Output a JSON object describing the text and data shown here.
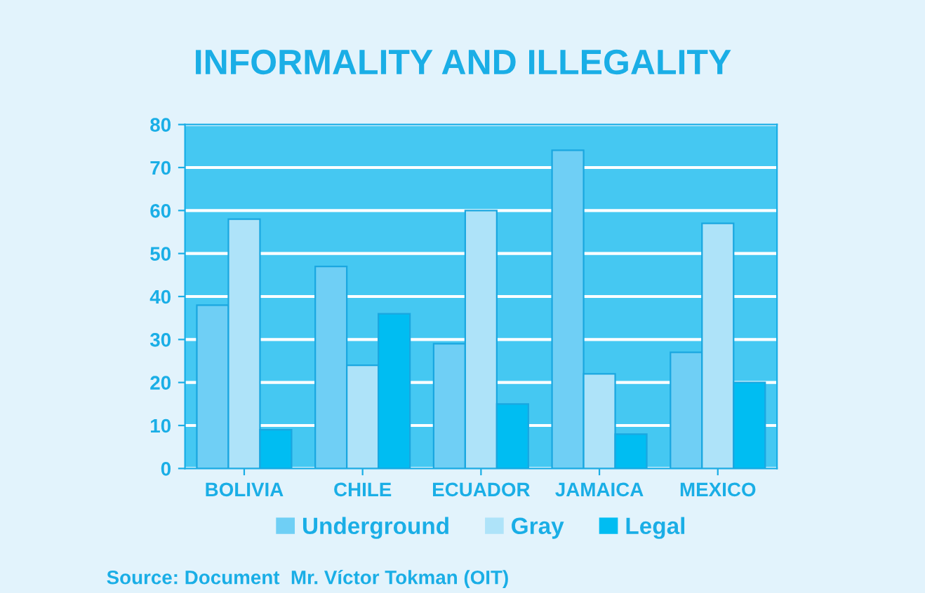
{
  "chart_data": {
    "type": "bar",
    "title": "INFORMALITY AND ILLEGALITY",
    "categories": [
      "BOLIVIA",
      "CHILE",
      "ECUADOR",
      "JAMAICA",
      "MEXICO"
    ],
    "series": [
      {
        "name": "Underground",
        "color": "#6fcff5",
        "values": [
          38,
          47,
          29,
          74,
          27
        ]
      },
      {
        "name": "Gray",
        "color": "#aee3f9",
        "values": [
          58,
          24,
          60,
          22,
          57
        ]
      },
      {
        "name": "Legal",
        "color": "#00bdf2",
        "values": [
          9,
          36,
          15,
          8,
          20
        ]
      }
    ],
    "ylim": [
      0,
      80
    ],
    "yticks": [
      0,
      10,
      20,
      30,
      40,
      50,
      60,
      70,
      80
    ],
    "grid": "y",
    "legend": "bottom",
    "annotations": [
      "Source: Document  Mr. Víctor Tokman (OIT)"
    ]
  }
}
